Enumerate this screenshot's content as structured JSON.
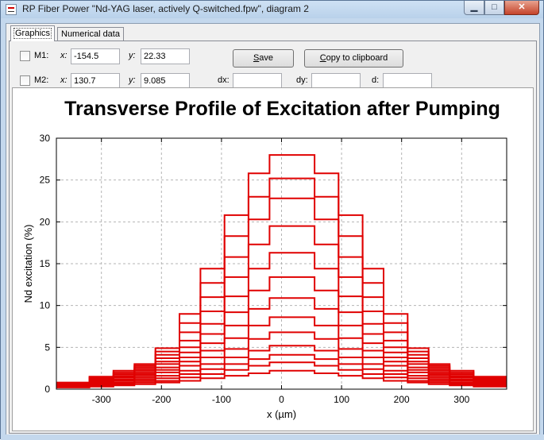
{
  "window": {
    "title": "RP Fiber Power \"Nd-YAG laser, actively Q-switched.fpw\", diagram 2",
    "minimize_glyph": "▁",
    "maximize_glyph": "□",
    "close_glyph": "✕"
  },
  "tabs": [
    {
      "label": "Graphics",
      "active": true
    },
    {
      "label": "Numerical data",
      "active": false
    }
  ],
  "markers": {
    "m1": {
      "label": "M1:",
      "x_label": "x:",
      "x_value": "-154.5",
      "y_label": "y:",
      "y_value": "22.33",
      "checked": false
    },
    "m2": {
      "label": "M2:",
      "x_label": "x:",
      "x_value": "130.7",
      "y_label": "y:",
      "y_value": "9.085",
      "checked": false
    },
    "dx_label": "dx:",
    "dx_value": "",
    "dy_label": "dy:",
    "dy_value": "",
    "d_label": "d:",
    "d_value": ""
  },
  "buttons": {
    "save_underline": "S",
    "save_rest": "ave",
    "copy_pre": "C",
    "copy_rest": "opy to clipboard"
  },
  "colors": {
    "accent": "#e00000",
    "grid": "#b4b4b4"
  },
  "chart_data": {
    "type": "line",
    "title": "Transverse Profile of Excitation after Pumping",
    "xlabel": "x (µm)",
    "ylabel": "Nd excitation (%)",
    "xlim": [
      -375,
      375
    ],
    "ylim": [
      0,
      30
    ],
    "xticks": [
      -300,
      -200,
      -100,
      0,
      100,
      200,
      300
    ],
    "yticks": [
      0,
      5,
      10,
      15,
      20,
      25,
      30
    ],
    "grid": true,
    "step": true,
    "boundaries": [
      -375,
      -320,
      -280,
      -245,
      -210,
      -170,
      -135,
      -95,
      -55,
      -20,
      20,
      55,
      95,
      135,
      170,
      210,
      245,
      280,
      320,
      375
    ],
    "series": [
      {
        "values": [
          0.2,
          0.3,
          0.45,
          0.6,
          0.8,
          1.0,
          1.3,
          1.6,
          1.9,
          2.2,
          2.2,
          1.9,
          1.6,
          1.3,
          1.0,
          0.8,
          0.6,
          0.45,
          0.3
        ]
      },
      {
        "values": [
          0.25,
          0.4,
          0.6,
          0.8,
          1.0,
          1.4,
          1.8,
          2.3,
          2.8,
          3.2,
          3.2,
          2.8,
          2.3,
          1.8,
          1.4,
          1.0,
          0.8,
          0.6,
          0.4
        ]
      },
      {
        "values": [
          0.3,
          0.5,
          0.7,
          1.0,
          1.3,
          1.8,
          2.4,
          3.0,
          3.6,
          4.1,
          4.1,
          3.6,
          3.0,
          2.4,
          1.8,
          1.3,
          1.0,
          0.7,
          0.5
        ]
      },
      {
        "values": [
          0.35,
          0.6,
          0.8,
          1.2,
          1.6,
          2.2,
          3.0,
          3.8,
          4.6,
          5.2,
          5.2,
          4.6,
          3.8,
          3.0,
          2.2,
          1.6,
          1.2,
          0.8,
          0.6
        ]
      },
      {
        "values": [
          0.4,
          0.7,
          1.0,
          1.4,
          2.0,
          2.8,
          3.8,
          4.8,
          6.0,
          6.8,
          6.8,
          6.0,
          4.8,
          3.8,
          2.8,
          2.0,
          1.4,
          1.0,
          0.7
        ]
      },
      {
        "values": [
          0.45,
          0.8,
          1.1,
          1.6,
          2.3,
          3.3,
          4.6,
          6.1,
          7.6,
          8.6,
          8.6,
          7.6,
          6.1,
          4.6,
          3.3,
          2.3,
          1.6,
          1.1,
          0.8
        ]
      },
      {
        "values": [
          0.5,
          0.9,
          1.2,
          1.8,
          2.6,
          3.8,
          5.5,
          7.6,
          9.6,
          10.9,
          10.9,
          9.6,
          7.6,
          5.5,
          3.8,
          2.6,
          1.8,
          1.2,
          0.9
        ]
      },
      {
        "values": [
          0.55,
          1.0,
          1.4,
          2.0,
          3.0,
          4.4,
          6.6,
          9.2,
          11.8,
          13.4,
          13.4,
          11.8,
          9.2,
          6.6,
          4.4,
          3.0,
          2.0,
          1.4,
          1.0
        ]
      },
      {
        "values": [
          0.6,
          1.1,
          1.5,
          2.2,
          3.3,
          5.0,
          7.8,
          11.1,
          14.4,
          16.3,
          16.3,
          14.4,
          11.1,
          7.8,
          5.0,
          3.3,
          2.2,
          1.5,
          1.1
        ]
      },
      {
        "values": [
          0.65,
          1.2,
          1.6,
          2.4,
          3.7,
          5.8,
          9.3,
          13.4,
          17.3,
          19.5,
          19.5,
          17.3,
          13.4,
          9.3,
          5.8,
          3.7,
          2.4,
          1.6,
          1.2
        ]
      },
      {
        "values": [
          0.7,
          1.3,
          1.8,
          2.6,
          4.1,
          6.8,
          11.0,
          15.8,
          20.3,
          22.8,
          22.8,
          20.3,
          15.8,
          11.0,
          6.8,
          4.1,
          2.6,
          1.8,
          1.3
        ]
      },
      {
        "values": [
          0.75,
          1.4,
          2.0,
          2.8,
          4.5,
          7.9,
          12.7,
          18.3,
          23.0,
          25.2,
          25.2,
          23.0,
          18.3,
          12.7,
          7.9,
          4.5,
          2.8,
          2.0,
          1.4
        ]
      },
      {
        "values": [
          0.8,
          1.5,
          2.2,
          3.0,
          4.9,
          9.0,
          14.4,
          20.8,
          25.8,
          28.0,
          28.0,
          25.8,
          20.8,
          14.4,
          9.0,
          4.9,
          3.0,
          2.2,
          1.5
        ]
      }
    ]
  }
}
